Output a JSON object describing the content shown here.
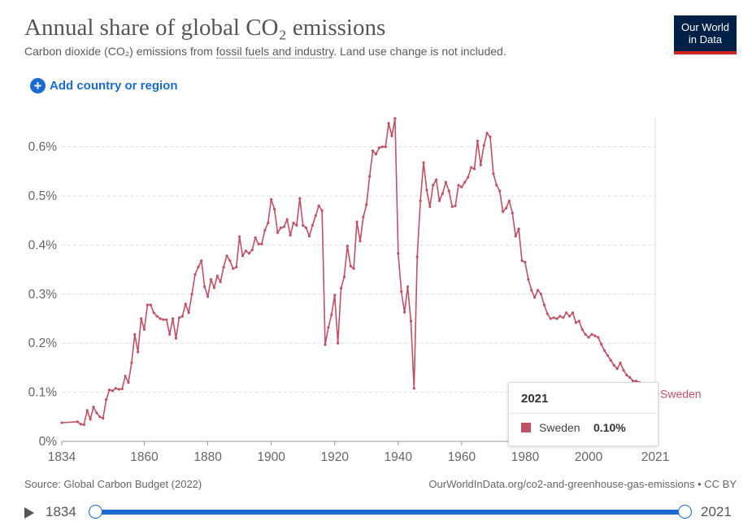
{
  "header": {
    "title": "Annual share of global CO₂ emissions",
    "subtitle_pre": "Carbon dioxide (CO₂) emissions from ",
    "subtitle_link": "fossil fuels and industry",
    "subtitle_post": ". Land use change is not included.",
    "logo_line1": "Our World",
    "logo_line2": "in Data"
  },
  "controls": {
    "add_label": "Add country or region"
  },
  "tooltip": {
    "year": "2021",
    "entity": "Sweden",
    "value": "0.10%"
  },
  "footer": {
    "source": "Source: Global Carbon Budget (2022)",
    "url": "OurWorldInData.org/co2-and-greenhouse-gas-emissions • CC BY"
  },
  "timeline": {
    "start_year": "1834",
    "end_year": "2021"
  },
  "colors": {
    "series": "#c05064",
    "accent": "#1a6bd1",
    "logo_bg": "#002147",
    "logo_bar": "#ce261e"
  },
  "chart_data": {
    "type": "line",
    "title": "Annual share of global CO₂ emissions",
    "subtitle": "Carbon dioxide (CO₂) emissions from fossil fuels and industry. Land use change is not included.",
    "xlabel": "",
    "ylabel": "",
    "xlim": [
      1834,
      2021
    ],
    "ylim": [
      0,
      0.66
    ],
    "x_ticks": [
      "1834",
      "1860",
      "1880",
      "1900",
      "1920",
      "1940",
      "1960",
      "1980",
      "2000",
      "2021"
    ],
    "y_ticks": [
      "0%",
      "0.1%",
      "0.2%",
      "0.3%",
      "0.4%",
      "0.5%",
      "0.6%"
    ],
    "y_tick_values": [
      0,
      0.1,
      0.2,
      0.3,
      0.4,
      0.5,
      0.6
    ],
    "grid": "horizontal dashed",
    "series": [
      {
        "name": "Sweden",
        "color": "#c05064",
        "points": [
          [
            1834,
            0.038
          ],
          [
            1839,
            0.04
          ],
          [
            1840,
            0.035
          ],
          [
            1841,
            0.034
          ],
          [
            1842,
            0.063
          ],
          [
            1843,
            0.045
          ],
          [
            1844,
            0.07
          ],
          [
            1845,
            0.058
          ],
          [
            1846,
            0.05
          ],
          [
            1847,
            0.047
          ],
          [
            1848,
            0.085
          ],
          [
            1849,
            0.105
          ],
          [
            1850,
            0.103
          ],
          [
            1851,
            0.108
          ],
          [
            1852,
            0.106
          ],
          [
            1853,
            0.107
          ],
          [
            1854,
            0.133
          ],
          [
            1855,
            0.12
          ],
          [
            1856,
            0.16
          ],
          [
            1857,
            0.218
          ],
          [
            1858,
            0.182
          ],
          [
            1859,
            0.25
          ],
          [
            1860,
            0.228
          ],
          [
            1861,
            0.278
          ],
          [
            1862,
            0.278
          ],
          [
            1863,
            0.262
          ],
          [
            1864,
            0.255
          ],
          [
            1865,
            0.25
          ],
          [
            1866,
            0.248
          ],
          [
            1867,
            0.248
          ],
          [
            1868,
            0.218
          ],
          [
            1869,
            0.25
          ],
          [
            1870,
            0.21
          ],
          [
            1871,
            0.252
          ],
          [
            1872,
            0.255
          ],
          [
            1873,
            0.28
          ],
          [
            1874,
            0.262
          ],
          [
            1875,
            0.3
          ],
          [
            1876,
            0.34
          ],
          [
            1877,
            0.355
          ],
          [
            1878,
            0.368
          ],
          [
            1879,
            0.315
          ],
          [
            1880,
            0.295
          ],
          [
            1881,
            0.33
          ],
          [
            1882,
            0.313
          ],
          [
            1883,
            0.337
          ],
          [
            1884,
            0.325
          ],
          [
            1885,
            0.355
          ],
          [
            1886,
            0.378
          ],
          [
            1887,
            0.368
          ],
          [
            1888,
            0.352
          ],
          [
            1889,
            0.355
          ],
          [
            1890,
            0.417
          ],
          [
            1891,
            0.378
          ],
          [
            1892,
            0.388
          ],
          [
            1893,
            0.383
          ],
          [
            1894,
            0.39
          ],
          [
            1895,
            0.415
          ],
          [
            1896,
            0.402
          ],
          [
            1897,
            0.402
          ],
          [
            1898,
            0.43
          ],
          [
            1899,
            0.445
          ],
          [
            1900,
            0.493
          ],
          [
            1901,
            0.473
          ],
          [
            1902,
            0.425
          ],
          [
            1903,
            0.435
          ],
          [
            1904,
            0.437
          ],
          [
            1905,
            0.452
          ],
          [
            1906,
            0.42
          ],
          [
            1907,
            0.445
          ],
          [
            1908,
            0.44
          ],
          [
            1909,
            0.495
          ],
          [
            1910,
            0.44
          ],
          [
            1911,
            0.435
          ],
          [
            1912,
            0.418
          ],
          [
            1913,
            0.44
          ],
          [
            1914,
            0.46
          ],
          [
            1915,
            0.48
          ],
          [
            1916,
            0.47
          ],
          [
            1917,
            0.197
          ],
          [
            1918,
            0.232
          ],
          [
            1919,
            0.258
          ],
          [
            1920,
            0.298
          ],
          [
            1921,
            0.2
          ],
          [
            1922,
            0.312
          ],
          [
            1923,
            0.335
          ],
          [
            1924,
            0.398
          ],
          [
            1925,
            0.357
          ],
          [
            1926,
            0.352
          ],
          [
            1927,
            0.447
          ],
          [
            1928,
            0.408
          ],
          [
            1929,
            0.457
          ],
          [
            1930,
            0.482
          ],
          [
            1931,
            0.54
          ],
          [
            1932,
            0.592
          ],
          [
            1933,
            0.585
          ],
          [
            1934,
            0.598
          ],
          [
            1935,
            0.6
          ],
          [
            1936,
            0.6
          ],
          [
            1937,
            0.648
          ],
          [
            1938,
            0.622
          ],
          [
            1939,
            0.658
          ],
          [
            1940,
            0.383
          ],
          [
            1941,
            0.305
          ],
          [
            1942,
            0.263
          ],
          [
            1943,
            0.315
          ],
          [
            1944,
            0.245
          ],
          [
            1945,
            0.108
          ],
          [
            1946,
            0.376
          ],
          [
            1947,
            0.49
          ],
          [
            1948,
            0.568
          ],
          [
            1949,
            0.512
          ],
          [
            1950,
            0.478
          ],
          [
            1951,
            0.522
          ],
          [
            1952,
            0.533
          ],
          [
            1953,
            0.49
          ],
          [
            1954,
            0.505
          ],
          [
            1955,
            0.528
          ],
          [
            1956,
            0.51
          ],
          [
            1957,
            0.478
          ],
          [
            1958,
            0.48
          ],
          [
            1959,
            0.522
          ],
          [
            1960,
            0.518
          ],
          [
            1961,
            0.528
          ],
          [
            1962,
            0.538
          ],
          [
            1963,
            0.558
          ],
          [
            1964,
            0.555
          ],
          [
            1965,
            0.612
          ],
          [
            1966,
            0.563
          ],
          [
            1967,
            0.603
          ],
          [
            1968,
            0.628
          ],
          [
            1969,
            0.62
          ],
          [
            1970,
            0.545
          ],
          [
            1971,
            0.522
          ],
          [
            1972,
            0.51
          ],
          [
            1973,
            0.468
          ],
          [
            1974,
            0.475
          ],
          [
            1975,
            0.49
          ],
          [
            1976,
            0.465
          ],
          [
            1977,
            0.418
          ],
          [
            1978,
            0.433
          ],
          [
            1979,
            0.368
          ],
          [
            1980,
            0.365
          ],
          [
            1981,
            0.33
          ],
          [
            1982,
            0.308
          ],
          [
            1983,
            0.293
          ],
          [
            1984,
            0.308
          ],
          [
            1985,
            0.3
          ],
          [
            1986,
            0.278
          ],
          [
            1987,
            0.26
          ],
          [
            1988,
            0.25
          ],
          [
            1989,
            0.252
          ],
          [
            1990,
            0.25
          ],
          [
            1991,
            0.255
          ],
          [
            1992,
            0.252
          ],
          [
            1993,
            0.262
          ],
          [
            1994,
            0.255
          ],
          [
            1995,
            0.262
          ],
          [
            1996,
            0.242
          ],
          [
            1997,
            0.245
          ],
          [
            1998,
            0.228
          ],
          [
            1999,
            0.218
          ],
          [
            2000,
            0.212
          ],
          [
            2001,
            0.218
          ],
          [
            2002,
            0.215
          ],
          [
            2003,
            0.212
          ],
          [
            2004,
            0.198
          ],
          [
            2005,
            0.185
          ],
          [
            2006,
            0.175
          ],
          [
            2007,
            0.165
          ],
          [
            2008,
            0.155
          ],
          [
            2009,
            0.148
          ],
          [
            2010,
            0.16
          ],
          [
            2011,
            0.145
          ],
          [
            2012,
            0.135
          ],
          [
            2013,
            0.13
          ],
          [
            2014,
            0.123
          ],
          [
            2015,
            0.123
          ],
          [
            2016,
            0.12
          ],
          [
            2017,
            0.118
          ],
          [
            2018,
            0.112
          ],
          [
            2019,
            0.108
          ],
          [
            2020,
            0.102
          ],
          [
            2021,
            0.097
          ]
        ]
      }
    ]
  }
}
